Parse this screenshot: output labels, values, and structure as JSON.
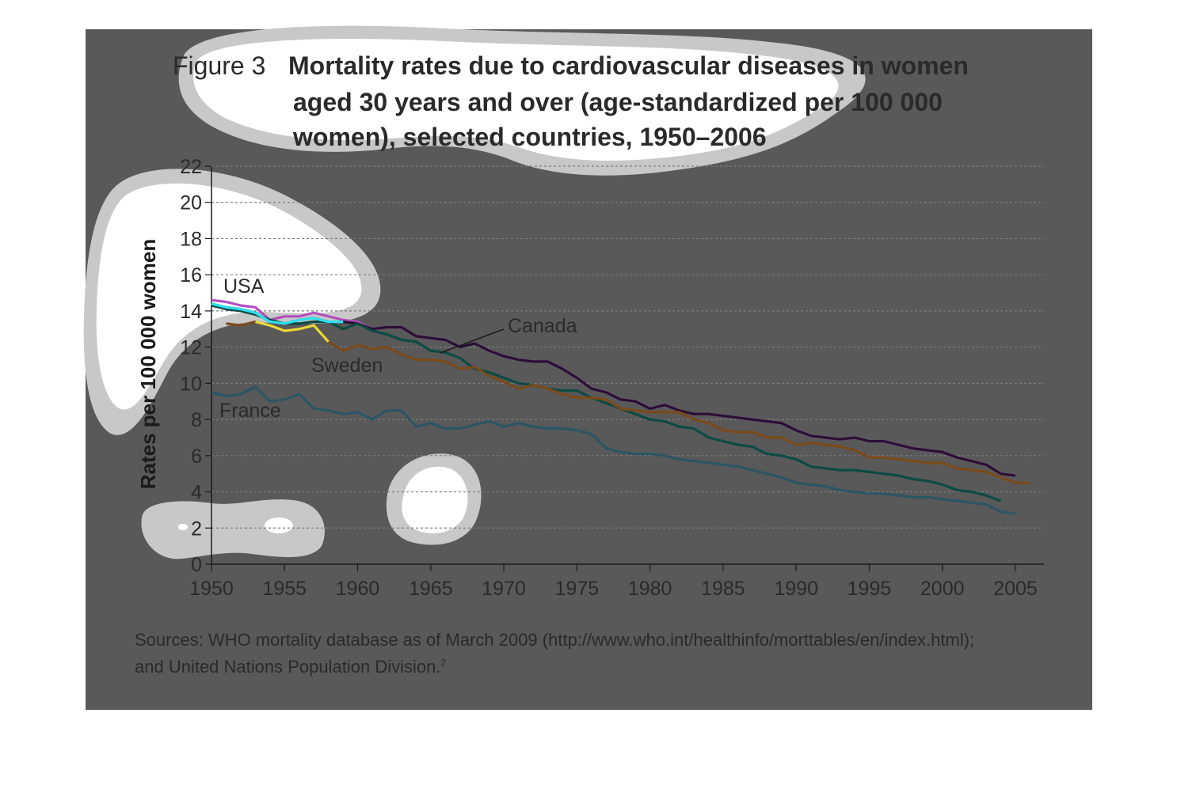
{
  "figure_label": "Figure 3",
  "title_lines": [
    "Mortality rates due to cardiovascular diseases in women",
    "aged 30 years and over (age-standardized per 100 000",
    "women), selected countries, 1950–2006"
  ],
  "sources": {
    "line1": "Sources: WHO mortality database as of March 2009 (http://www.who.int/healthinfo/morttables/en/index.html);",
    "line2": "and United Nations Population Division.",
    "footnote": "2"
  },
  "colors": {
    "panel": "#595959",
    "grid": "#7d7d7d",
    "axis": "#1a1a1a",
    "text": "#2a2a2a",
    "blob_outer": "#c8c8c8",
    "blob_inner": "#ffffff"
  },
  "chart_data": {
    "type": "line",
    "ylabel": "Rates per 100 000 women",
    "xlabel": "",
    "xlim": [
      1950,
      2007
    ],
    "ylim": [
      0,
      22
    ],
    "xticks": [
      1950,
      1955,
      1960,
      1965,
      1970,
      1975,
      1980,
      1985,
      1990,
      1995,
      2000,
      2005
    ],
    "yticks": [
      0,
      2,
      4,
      6,
      8,
      10,
      12,
      14,
      16,
      18,
      20,
      22
    ],
    "grid": true,
    "series": [
      {
        "name": "USA",
        "color": "#b24fbf",
        "x": [
          1950,
          1951,
          1952,
          1953,
          1954,
          1955,
          1956,
          1957,
          1958,
          1959,
          1960,
          1961,
          1962,
          1963,
          1964,
          1965,
          1966,
          1967,
          1968,
          1969,
          1970,
          1971,
          1972,
          1973,
          1974,
          1975,
          1976,
          1977,
          1978,
          1979,
          1980,
          1981,
          1982,
          1983,
          1984,
          1985,
          1986,
          1987,
          1988,
          1989,
          1990,
          1991,
          1992,
          1993,
          1994,
          1995,
          1996,
          1997,
          1998,
          1999,
          2000,
          2001,
          2002,
          2003,
          2004,
          2005
        ],
        "y": [
          14.6,
          14.5,
          14.3,
          14.2,
          13.5,
          13.7,
          13.7,
          13.9,
          13.7,
          13.5,
          13.4,
          13.0,
          13.1,
          13.1,
          12.6,
          12.5,
          12.4,
          12.0,
          12.2,
          11.8,
          11.5,
          11.3,
          11.2,
          11.2,
          10.8,
          10.3,
          9.7,
          9.5,
          9.1,
          9.0,
          8.6,
          8.8,
          8.5,
          8.3,
          8.3,
          8.2,
          8.1,
          8.0,
          7.9,
          7.8,
          7.4,
          7.1,
          7.0,
          6.9,
          7.0,
          6.8,
          6.8,
          6.6,
          6.4,
          6.3,
          6.2,
          5.9,
          5.7,
          5.5,
          5.0,
          4.9
        ]
      },
      {
        "name": "Canada",
        "color": "#2a0f35",
        "x": [
          1950,
          1951,
          1952,
          1953,
          1954,
          1955,
          1956,
          1957,
          1958,
          1959,
          1960,
          1961,
          1962,
          1963,
          1964,
          1965,
          1966,
          1967,
          1968,
          1969,
          1970,
          1971,
          1972,
          1973,
          1974,
          1975,
          1976,
          1977,
          1978,
          1979,
          1980,
          1981,
          1982,
          1983,
          1984,
          1985,
          1986,
          1987,
          1988,
          1989,
          1990,
          1991,
          1992,
          1993,
          1994,
          1995,
          1996,
          1997,
          1998,
          1999,
          2000,
          2001,
          2002,
          2003,
          2004,
          2005
        ],
        "y": [
          14.4,
          14.2,
          14.1,
          13.9,
          13.4,
          13.3,
          13.5,
          13.6,
          13.4,
          13.4,
          13.3,
          13.0,
          13.1,
          13.1,
          12.6,
          12.5,
          12.4,
          12.0,
          12.2,
          11.8,
          11.5,
          11.3,
          11.2,
          11.2,
          10.8,
          10.3,
          9.7,
          9.5,
          9.1,
          9.0,
          8.6,
          8.8,
          8.5,
          8.3,
          8.3,
          8.2,
          8.1,
          8.0,
          7.9,
          7.8,
          7.4,
          7.1,
          7.0,
          6.9,
          7.0,
          6.8,
          6.8,
          6.6,
          6.4,
          6.3,
          6.2,
          5.9,
          5.7,
          5.5,
          5.0,
          4.9
        ]
      },
      {
        "name": "",
        "color": "#0d4a46",
        "x": [
          1950,
          1951,
          1952,
          1953,
          1954,
          1955,
          1956,
          1957,
          1958,
          1959,
          1960,
          1961,
          1962,
          1963,
          1964,
          1965,
          1966,
          1967,
          1968,
          1969,
          1970,
          1971,
          1972,
          1973,
          1974,
          1975,
          1976,
          1977,
          1978,
          1979,
          1980,
          1981,
          1982,
          1983,
          1984,
          1985,
          1986,
          1987,
          1988,
          1989,
          1990,
          1991,
          1992,
          1993,
          1994,
          1995,
          1996,
          1997,
          1998,
          1999,
          2000,
          2001,
          2002,
          2003,
          2004
        ],
        "y": [
          14.3,
          14.1,
          14.0,
          13.8,
          13.5,
          13.3,
          13.3,
          13.4,
          13.4,
          13.0,
          13.3,
          12.9,
          12.7,
          12.4,
          12.3,
          11.8,
          11.7,
          11.4,
          10.8,
          10.6,
          10.3,
          10.0,
          9.9,
          9.7,
          9.6,
          9.6,
          9.2,
          8.9,
          8.6,
          8.3,
          8.0,
          7.9,
          7.6,
          7.5,
          7.0,
          6.8,
          6.6,
          6.5,
          6.1,
          6.0,
          5.8,
          5.4,
          5.3,
          5.2,
          5.2,
          5.1,
          5.0,
          4.9,
          4.7,
          4.6,
          4.4,
          4.1,
          4.0,
          3.8,
          3.5
        ]
      },
      {
        "name": "Sweden",
        "color": "#7a4a1a",
        "x": [
          1951,
          1952,
          1953,
          1954,
          1955,
          1956,
          1957,
          1958,
          1959,
          1960,
          1961,
          1962,
          1963,
          1964,
          1965,
          1966,
          1967,
          1968,
          1969,
          1970,
          1971,
          1972,
          1973,
          1974,
          1975,
          1976,
          1977,
          1978,
          1979,
          1980,
          1981,
          1982,
          1983,
          1984,
          1985,
          1986,
          1987,
          1988,
          1989,
          1990,
          1991,
          1992,
          1993,
          1994,
          1995,
          1996,
          1997,
          1998,
          1999,
          2000,
          2001,
          2002,
          2003,
          2004,
          2005,
          2006
        ],
        "y": [
          13.3,
          13.2,
          13.4,
          13.2,
          12.9,
          13.0,
          13.2,
          12.3,
          11.8,
          12.1,
          11.9,
          12.0,
          11.6,
          11.3,
          11.3,
          11.2,
          10.8,
          10.9,
          10.4,
          10.1,
          9.7,
          9.9,
          9.7,
          9.4,
          9.2,
          9.2,
          9.1,
          8.6,
          8.5,
          8.4,
          8.4,
          8.4,
          8.0,
          7.8,
          7.4,
          7.3,
          7.3,
          7.0,
          7.0,
          6.6,
          6.7,
          6.6,
          6.5,
          6.3,
          5.9,
          5.9,
          5.8,
          5.7,
          5.6,
          5.6,
          5.3,
          5.2,
          5.1,
          4.8,
          4.5,
          4.5
        ]
      },
      {
        "name": "France",
        "color": "#2b5564",
        "x": [
          1950,
          1951,
          1952,
          1953,
          1954,
          1955,
          1956,
          1957,
          1958,
          1959,
          1960,
          1961,
          1962,
          1963,
          1964,
          1965,
          1966,
          1967,
          1968,
          1969,
          1970,
          1971,
          1972,
          1973,
          1974,
          1975,
          1976,
          1977,
          1978,
          1979,
          1980,
          1981,
          1982,
          1983,
          1984,
          1985,
          1986,
          1987,
          1988,
          1989,
          1990,
          1991,
          1992,
          1993,
          1994,
          1995,
          1996,
          1997,
          1998,
          1999,
          2000,
          2001,
          2002,
          2003,
          2004,
          2005
        ],
        "y": [
          9.5,
          9.3,
          9.4,
          9.8,
          9.0,
          9.1,
          9.4,
          8.6,
          8.5,
          8.3,
          8.4,
          8.0,
          8.5,
          8.5,
          7.6,
          7.8,
          7.5,
          7.5,
          7.7,
          7.9,
          7.6,
          7.8,
          7.6,
          7.5,
          7.5,
          7.4,
          7.2,
          6.4,
          6.2,
          6.1,
          6.1,
          6.0,
          5.8,
          5.7,
          5.6,
          5.5,
          5.4,
          5.2,
          5.0,
          4.8,
          4.5,
          4.4,
          4.3,
          4.1,
          4.0,
          3.9,
          3.9,
          3.8,
          3.7,
          3.7,
          3.6,
          3.5,
          3.4,
          3.3,
          2.9,
          2.8
        ]
      }
    ],
    "annotations": [
      {
        "text": "USA",
        "series": "USA"
      },
      {
        "text": "Canada",
        "series": "Canada"
      },
      {
        "text": "Sweden",
        "series": "Sweden"
      },
      {
        "text": "France",
        "series": "France"
      }
    ]
  }
}
